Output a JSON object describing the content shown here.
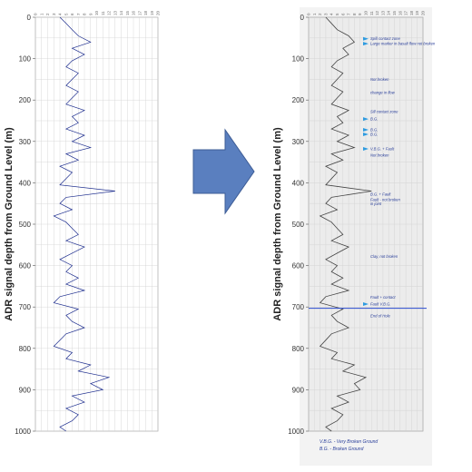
{
  "colors": {
    "left_trace": "#1f2f8f",
    "right_trace": "#444444",
    "arrow_fill": "#5a7fbf",
    "arrow_stroke": "#3d5c95",
    "annotation_ink": "#2a3f9a",
    "marker": "#2e9be0",
    "grid": "#d0d0d0",
    "paper": "#f3f3f3",
    "highlight_line": "#2a4bd0"
  },
  "transition_arrow": {
    "icon": "right-block-arrow"
  },
  "chart_data": [
    {
      "type": "line",
      "orientation": "vertical-depth-log",
      "ylabel": "ADR signal depth from Ground Level (m)",
      "ylim": [
        0,
        1000
      ],
      "y_inverted": true,
      "y_ticks": [
        "0",
        "100",
        "200",
        "300",
        "400",
        "500",
        "600",
        "700",
        "800",
        "900",
        "1000"
      ],
      "x_tick_labels": [
        "0",
        "1",
        "2",
        "3",
        "4",
        "5",
        "6",
        "7",
        "8",
        "9",
        "10",
        "11",
        "12",
        "13",
        "14",
        "15",
        "16",
        "17",
        "18",
        "19",
        "20"
      ],
      "grid": true,
      "series": [
        {
          "depth": [
            0,
            15,
            30,
            45,
            60,
            75,
            90,
            105,
            120,
            135,
            150,
            165,
            180,
            195,
            210,
            225,
            240,
            255,
            270,
            285,
            300,
            315,
            330,
            345,
            360,
            375,
            390,
            405,
            420,
            435,
            450,
            465,
            480,
            495,
            510,
            525,
            540,
            555,
            570,
            585,
            600,
            615,
            630,
            645,
            660,
            675,
            690,
            705,
            720,
            735,
            750,
            765,
            780,
            795,
            810,
            825,
            840,
            855,
            870,
            885,
            900,
            915,
            930,
            945,
            960,
            975,
            990,
            1000
          ],
          "value": [
            4,
            5,
            6,
            7,
            9,
            6,
            8,
            6,
            5,
            7,
            6,
            5,
            7,
            6,
            5,
            8,
            6,
            7,
            5,
            8,
            6,
            9,
            5,
            7,
            4,
            6,
            5,
            4,
            13,
            5,
            4,
            6,
            3,
            5,
            6,
            7,
            5,
            8,
            6,
            4,
            6,
            5,
            7,
            5,
            8,
            4,
            3,
            7,
            5,
            6,
            8,
            5,
            4,
            3,
            6,
            5,
            9,
            7,
            12,
            9,
            11,
            6,
            8,
            5,
            7,
            6,
            4,
            5
          ]
        }
      ]
    },
    {
      "type": "line",
      "orientation": "vertical-depth-log",
      "ylabel": "ADR signal depth from Ground Level (m)",
      "ylim": [
        0,
        1000
      ],
      "y_inverted": true,
      "y_ticks": [
        "0",
        "100",
        "200",
        "300",
        "400",
        "500",
        "600",
        "700",
        "800",
        "900",
        "1000"
      ],
      "x_tick_labels": [
        "0",
        "1",
        "2",
        "3",
        "4",
        "5",
        "6",
        "7",
        "8",
        "9",
        "10",
        "11",
        "12",
        "13",
        "14",
        "15",
        "16",
        "17",
        "18",
        "19",
        "20"
      ],
      "grid": true,
      "highlight_depth": 703,
      "series": [
        {
          "depth": [
            0,
            15,
            30,
            45,
            60,
            75,
            90,
            105,
            120,
            135,
            150,
            165,
            180,
            195,
            210,
            225,
            240,
            255,
            270,
            285,
            300,
            315,
            330,
            345,
            360,
            375,
            390,
            405,
            420,
            435,
            450,
            465,
            480,
            495,
            510,
            525,
            540,
            555,
            570,
            585,
            600,
            615,
            630,
            645,
            660,
            675,
            690,
            705,
            720,
            735,
            750,
            765,
            780,
            795,
            810,
            825,
            840,
            855,
            870,
            885,
            900,
            915,
            930,
            945,
            960,
            975,
            990,
            1000
          ],
          "value": [
            3,
            4,
            5,
            7,
            8,
            6,
            7,
            5,
            4,
            6,
            5,
            4,
            6,
            5,
            4,
            7,
            5,
            6,
            4,
            7,
            5,
            8,
            4,
            6,
            3,
            5,
            4,
            3,
            11,
            4,
            3,
            5,
            2,
            4,
            5,
            6,
            4,
            7,
            5,
            3,
            5,
            4,
            6,
            4,
            7,
            3,
            2,
            6,
            4,
            5,
            7,
            4,
            3,
            2,
            5,
            4,
            8,
            6,
            10,
            8,
            9,
            5,
            7,
            4,
            6,
            5,
            3,
            4
          ]
        }
      ],
      "annotations": [
        {
          "text": "Spill contact zone",
          "depth": 52,
          "marker": true
        },
        {
          "text": "Large marker in basalt flow not broken",
          "depth": 64,
          "marker": true
        },
        {
          "text": "Not broken",
          "depth": 150,
          "marker": false
        },
        {
          "text": "change in flow",
          "depth": 182,
          "marker": false
        },
        {
          "text": "Sill contact zone",
          "depth": 228,
          "marker": false
        },
        {
          "text": "B.G.",
          "depth": 246,
          "marker": true
        },
        {
          "text": "B.G.",
          "depth": 272,
          "marker": true
        },
        {
          "text": "B.G.",
          "depth": 283,
          "marker": true
        },
        {
          "text": "V.B.G. + Fault",
          "depth": 318,
          "marker": true
        },
        {
          "text": "Not broken",
          "depth": 333,
          "marker": false
        },
        {
          "text": "B.G. + Fault",
          "depth": 428,
          "marker": false
        },
        {
          "text": "Fault - not broken",
          "depth": 441,
          "marker": false
        },
        {
          "text": "in joint",
          "depth": 451,
          "marker": false
        },
        {
          "text": "Clay, not broken",
          "depth": 578,
          "marker": false
        },
        {
          "text": "Fault + contact",
          "depth": 677,
          "marker": false
        },
        {
          "text": "Fault V.B.G.",
          "depth": 693,
          "marker": true
        },
        {
          "text": "End of Hole",
          "depth": 722,
          "marker": false
        }
      ],
      "legend": [
        {
          "text": "V.B.G. - Very Broken Ground"
        },
        {
          "text": "B.G. - Broken Ground"
        }
      ]
    }
  ]
}
